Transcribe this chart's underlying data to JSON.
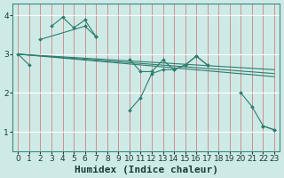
{
  "bg_color": "#ceeae7",
  "grid_color_h": "#ffffff",
  "grid_color_v": "#e8a0a0",
  "line_color": "#2e7d6e",
  "xlabel": "Humidex (Indice chaleur)",
  "xlabel_fontsize": 8,
  "xlim": [
    -0.5,
    23.5
  ],
  "ylim": [
    0.5,
    4.3
  ],
  "yticks": [
    1,
    2,
    3,
    4
  ],
  "xticks": [
    0,
    1,
    2,
    3,
    4,
    5,
    6,
    7,
    8,
    9,
    10,
    11,
    12,
    13,
    14,
    15,
    16,
    17,
    18,
    19,
    20,
    21,
    22,
    23
  ],
  "lines": [
    {
      "comment": "jagged line 1: starts at 0,3 goes to 1,2.72, jumps to 3,3.72, 4,3.95, 5,3.68, 6,3.88, 7,3.45, then to 10,2.87, 11,2.55, 12,2.55, 13,2.85, 14,2.6, 15,2.72, 16,2.95, 17,2.72, 20,2.0, 21,1.65, 22,1.15, 23,1.05",
      "segments": [
        {
          "x": [
            0,
            1
          ],
          "y": [
            3.0,
            2.72
          ]
        },
        {
          "x": [
            3,
            4,
            5,
            6,
            7
          ],
          "y": [
            3.72,
            3.95,
            3.68,
            3.88,
            3.45
          ]
        },
        {
          "x": [
            10,
            11,
            12,
            13,
            14,
            15,
            16,
            17
          ],
          "y": [
            2.87,
            2.55,
            2.55,
            2.85,
            2.6,
            2.72,
            2.95,
            2.72
          ]
        },
        {
          "x": [
            20,
            21,
            22,
            23
          ],
          "y": [
            2.0,
            1.65,
            1.15,
            1.05
          ]
        }
      ]
    },
    {
      "comment": "jagged line 2: 2,3.38, 6,3.72, 7,3.45(?), 10,1.55, 11,1.88, 12,2.5, 13,2.6, 14,2.6, 15,2.72, 16,2.95, 17,2.72",
      "segments": [
        {
          "x": [
            2,
            6,
            7
          ],
          "y": [
            3.38,
            3.72,
            3.45
          ]
        },
        {
          "x": [
            10,
            11,
            12,
            13,
            14,
            15,
            16,
            17
          ],
          "y": [
            1.55,
            1.88,
            2.5,
            2.6,
            2.6,
            2.72,
            2.95,
            2.72
          ]
        },
        {
          "x": [
            22,
            23
          ],
          "y": [
            1.15,
            1.05
          ]
        }
      ]
    },
    {
      "segments": [
        {
          "x": [
            0,
            23
          ],
          "y": [
            3.0,
            2.6
          ]
        }
      ]
    },
    {
      "segments": [
        {
          "x": [
            0,
            23
          ],
          "y": [
            3.0,
            2.5
          ]
        }
      ]
    },
    {
      "segments": [
        {
          "x": [
            0,
            23
          ],
          "y": [
            3.0,
            2.42
          ]
        }
      ]
    }
  ],
  "tick_label_fontsize": 6.5
}
